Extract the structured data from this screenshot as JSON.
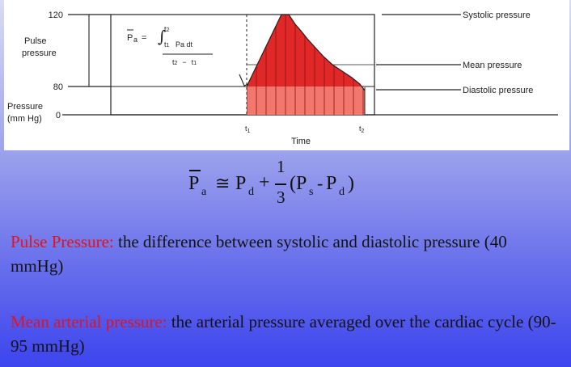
{
  "figure": {
    "y_tick_120": "120",
    "y_tick_80": "80",
    "y_tick_0": "0",
    "pulse_pressure_label": [
      "Pulse",
      "pressure"
    ],
    "pressure_axis_label": [
      "Pressure",
      "(mm Hg)"
    ],
    "x_label": "Time",
    "t1_label": "t",
    "t1_sub": "1",
    "t2_label": "t",
    "t2_sub": "2",
    "systolic_label": "Systolic pressure",
    "mean_label": "Mean pressure",
    "diastolic_label": "Diastolic pressure",
    "inset_formula": {
      "lhs": "P",
      "lhs_sub": "a",
      "equals": "=",
      "integral_upper": "t",
      "integral_upper_sub": "2",
      "integral_lower": "t",
      "integral_lower_sub": "1",
      "integrand": "Pa dt",
      "denominator": "t",
      "denominator_sub1": "2",
      "denominator_minus": "−",
      "denominator_t": "t",
      "denominator_sub2": "1"
    },
    "colors": {
      "fill_dark": "#e02828",
      "fill_light": "#f2786e",
      "line": "#222222"
    }
  },
  "formula": {
    "lhs": "P",
    "lhs_sub": "a",
    "approx": "≅",
    "pd": "P",
    "pd_sub": "d",
    "plus": "+",
    "numerator": "1",
    "denominator": "3",
    "paren_open": "(",
    "ps": "P",
    "ps_sub": "s",
    "minus": "-",
    "pd2": "P",
    "pd2_sub": "d",
    "paren_close": ")"
  },
  "definitions": {
    "pulse_term": "Pulse Pressure",
    "pulse_colon": ":",
    "pulse_text": " the difference between systolic and diastolic pressure (40 mmHg)",
    "mean_term": "Mean arterial pressure",
    "mean_colon": ":",
    "mean_text": " the arterial pressure averaged over the cardiac cycle (90-95 mmHg)"
  }
}
